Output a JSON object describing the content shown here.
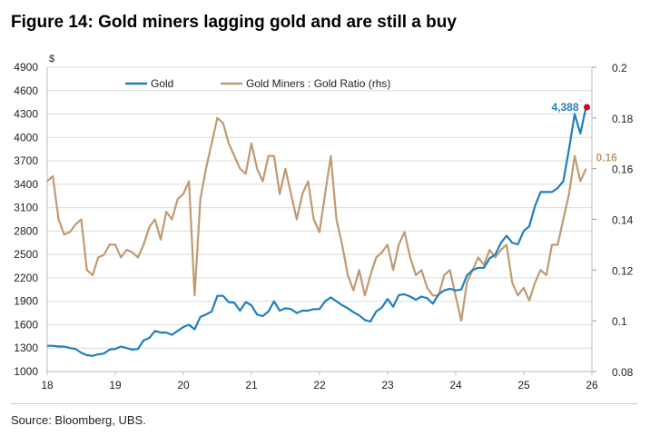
{
  "title": "Figure 14: Gold miners lagging gold and are still a buy",
  "source": "Source: Bloomberg, UBS.",
  "chart_data": {
    "type": "line",
    "title": "Figure 14: Gold miners lagging gold and are still a buy",
    "ylabel": "$",
    "ylim": [
      1000,
      4900
    ],
    "y_ticks": [
      1000,
      1300,
      1600,
      1900,
      2200,
      2500,
      2800,
      3100,
      3400,
      3700,
      4000,
      4300,
      4600,
      4900
    ],
    "y2lim": [
      0.08,
      0.2
    ],
    "y2_ticks": [
      "0.08",
      "0.1",
      "0.12",
      "0.14",
      "0.16",
      "0.18",
      "0.2"
    ],
    "xlim": [
      18,
      26
    ],
    "x_ticks": [
      "18",
      "19",
      "20",
      "21",
      "22",
      "23",
      "24",
      "25",
      "26"
    ],
    "grid": true,
    "legend": "top-center",
    "colors": {
      "gold": "#1f7fc0",
      "ratio": "#c19a72",
      "marker": "#d0021b"
    },
    "annotations": {
      "gold_last": "4,388",
      "ratio_last": "0.16"
    },
    "series": [
      {
        "name": "Gold",
        "axis": "left",
        "x_start": 18,
        "x_step": 0.0833,
        "values": [
          1330,
          1330,
          1320,
          1320,
          1300,
          1290,
          1240,
          1210,
          1200,
          1220,
          1230,
          1280,
          1290,
          1320,
          1300,
          1280,
          1290,
          1400,
          1430,
          1520,
          1500,
          1500,
          1470,
          1520,
          1570,
          1600,
          1540,
          1700,
          1730,
          1770,
          1970,
          1970,
          1890,
          1880,
          1780,
          1890,
          1850,
          1730,
          1710,
          1770,
          1900,
          1780,
          1810,
          1800,
          1750,
          1780,
          1780,
          1800,
          1800,
          1900,
          1950,
          1900,
          1850,
          1810,
          1760,
          1720,
          1660,
          1640,
          1770,
          1820,
          1930,
          1830,
          1980,
          1990,
          1960,
          1920,
          1960,
          1940,
          1870,
          1990,
          2040,
          2060,
          2040,
          2050,
          2230,
          2300,
          2330,
          2330,
          2450,
          2500,
          2650,
          2740,
          2650,
          2630,
          2800,
          2860,
          3120,
          3300,
          3300,
          3300,
          3350,
          3440,
          3850,
          4300,
          4050,
          4388
        ]
      },
      {
        "name": "Gold Miners : Gold Ratio (rhs)",
        "axis": "right",
        "x_start": 18,
        "x_step": 0.0833,
        "values": [
          0.155,
          0.157,
          0.14,
          0.134,
          0.135,
          0.138,
          0.14,
          0.12,
          0.118,
          0.125,
          0.126,
          0.13,
          0.13,
          0.125,
          0.128,
          0.127,
          0.125,
          0.13,
          0.137,
          0.14,
          0.132,
          0.143,
          0.14,
          0.148,
          0.15,
          0.155,
          0.11,
          0.148,
          0.16,
          0.17,
          0.18,
          0.178,
          0.17,
          0.165,
          0.16,
          0.158,
          0.17,
          0.16,
          0.155,
          0.165,
          0.165,
          0.15,
          0.16,
          0.15,
          0.14,
          0.15,
          0.155,
          0.14,
          0.135,
          0.15,
          0.165,
          0.14,
          0.13,
          0.118,
          0.112,
          0.12,
          0.11,
          0.118,
          0.125,
          0.127,
          0.13,
          0.12,
          0.13,
          0.135,
          0.125,
          0.118,
          0.12,
          0.113,
          0.11,
          0.11,
          0.118,
          0.12,
          0.11,
          0.1,
          0.115,
          0.12,
          0.125,
          0.122,
          0.128,
          0.125,
          0.128,
          0.13,
          0.115,
          0.11,
          0.113,
          0.108,
          0.115,
          0.12,
          0.118,
          0.13,
          0.13,
          0.14,
          0.15,
          0.165,
          0.155,
          0.16
        ]
      }
    ]
  }
}
